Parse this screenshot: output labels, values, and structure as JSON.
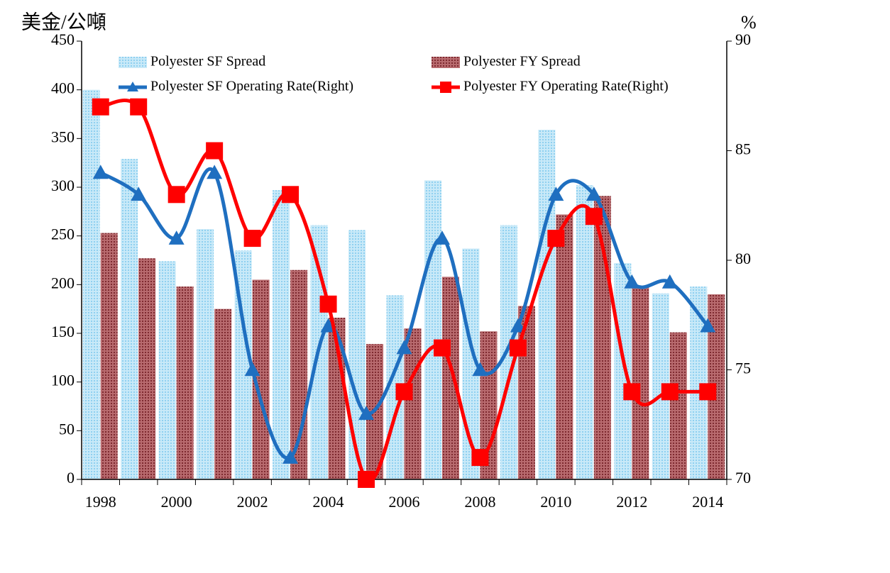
{
  "chart_data": {
    "type": "bar",
    "y_label": "美金/公噸",
    "y2_label": "%",
    "categories": [
      "1998",
      null,
      "2000",
      null,
      "2002",
      null,
      "2004",
      null,
      "2006",
      null,
      "2008",
      null,
      "2010",
      null,
      "2012",
      null,
      "2014"
    ],
    "series": [
      {
        "name": "Polyester SF Spread",
        "type": "bar",
        "color": "#a9dbf3",
        "values": [
          400,
          329,
          224,
          257,
          235,
          297,
          261,
          256,
          189,
          307,
          237,
          261,
          359,
          302,
          222,
          191,
          198
        ]
      },
      {
        "name": "Polyester FY Spread",
        "type": "bar",
        "color": "#9e4a4e",
        "values": [
          253,
          227,
          198,
          175,
          205,
          215,
          166,
          139,
          155,
          208,
          152,
          178,
          272,
          291,
          197,
          151,
          190
        ]
      },
      {
        "name": "Polyester SF Operating Rate(Right)",
        "type": "line",
        "marker": "triangle",
        "axis": "y2",
        "color": "#1f6fc0",
        "values": [
          84,
          83,
          81,
          84,
          75,
          71,
          77,
          73,
          76,
          81,
          75,
          77,
          83,
          83,
          79,
          79,
          77
        ]
      },
      {
        "name": "Polyester FY Operating Rate(Right)",
        "type": "line",
        "marker": "square",
        "axis": "y2",
        "color": "#ff0000",
        "values": [
          87,
          87,
          83,
          85,
          81,
          83,
          78,
          70,
          74,
          76,
          71,
          76,
          81,
          82,
          74,
          74,
          74
        ]
      }
    ],
    "ylim": [
      0,
      450
    ],
    "yticks": [
      0,
      50,
      100,
      150,
      200,
      250,
      300,
      350,
      400,
      450
    ],
    "y2lim": [
      70,
      90
    ],
    "y2ticks": [
      70,
      75,
      80,
      85,
      90
    ]
  }
}
